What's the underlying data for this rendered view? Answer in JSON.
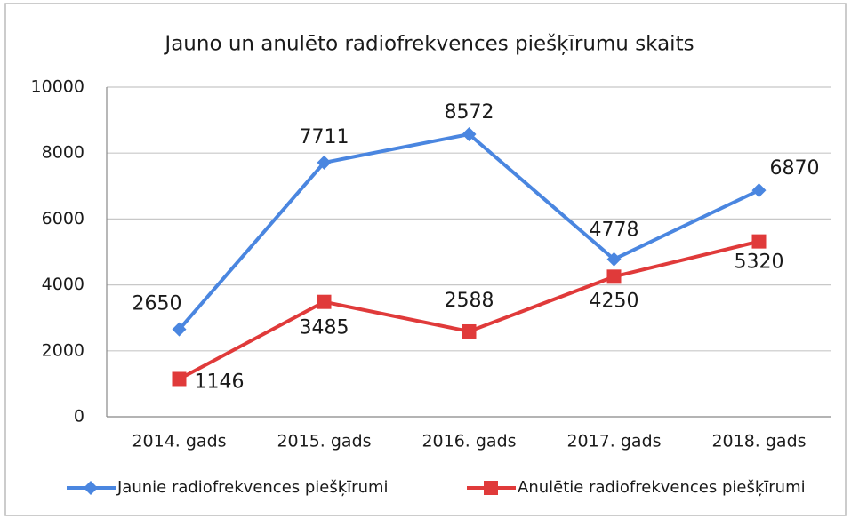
{
  "chart_data": {
    "type": "line",
    "title": "Jauno un anulēto radiofrekvences piešķīrumu skaits",
    "categories": [
      "2014. gads",
      "2015. gads",
      "2016. gads",
      "2017. gads",
      "2018. gads"
    ],
    "series": [
      {
        "name": "Jaunie radiofrekvences piešķīrumi",
        "color": "#4a86e0",
        "marker": "diamond",
        "values": [
          2650,
          7711,
          8572,
          4778,
          6870
        ]
      },
      {
        "name": "Anulētie radiofrekvences piešķīrumi",
        "color": "#e03a3a",
        "marker": "square",
        "values": [
          1146,
          3485,
          2588,
          4250,
          5320
        ]
      }
    ],
    "ylim": [
      0,
      10000
    ],
    "yticks": [
      0,
      2000,
      4000,
      6000,
      8000,
      10000
    ],
    "grid": true,
    "legend": "bottom"
  }
}
